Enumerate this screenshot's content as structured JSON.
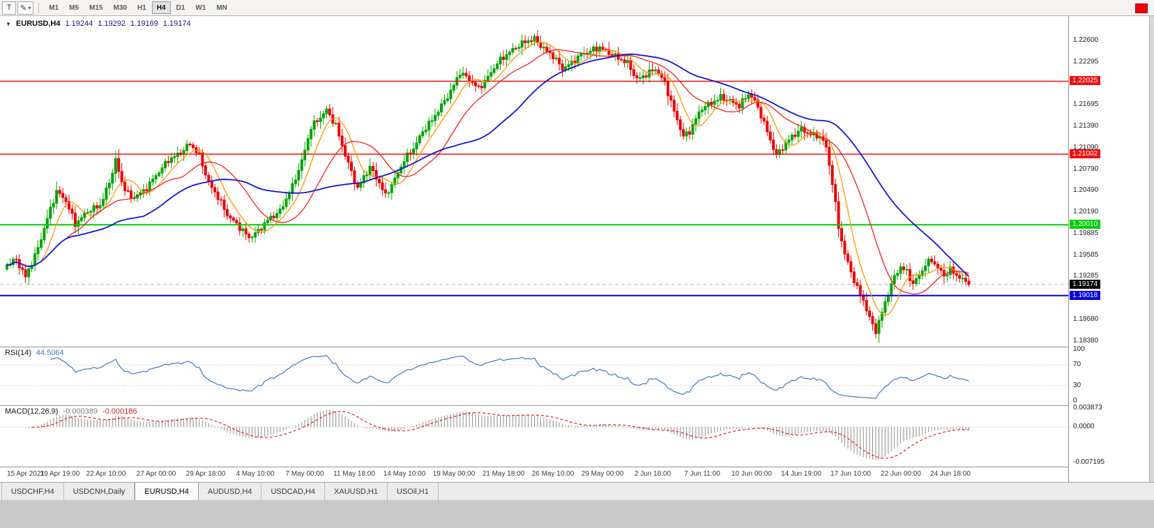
{
  "toolbar": {
    "tools": [
      {
        "name": "text-tool",
        "glyph": "T"
      },
      {
        "name": "draw-tool",
        "glyph": "✎",
        "caret": "▾"
      }
    ],
    "timeframes": [
      "M1",
      "M5",
      "M15",
      "M30",
      "H1",
      "H4",
      "D1",
      "W1",
      "MN"
    ],
    "active_timeframe": "H4"
  },
  "header": {
    "collapse_icon": "▼",
    "symbol": "EURUSD,H4",
    "open": "1.19244",
    "high": "1.19292",
    "low": "1.19169",
    "close": "1.19174"
  },
  "price_axis": {
    "p_top": 1.2294,
    "p_bottom": 1.183,
    "ticks": [
      "1.22600",
      "1.22295",
      "1.21990",
      "1.21695",
      "1.21390",
      "1.21090",
      "1.20790",
      "1.20490",
      "1.20190",
      "1.19885",
      "1.19585",
      "1.19285",
      "1.18980",
      "1.18680",
      "1.18380"
    ]
  },
  "levels": [
    {
      "value": 1.22025,
      "label": "1.22025",
      "color": "#ee1010",
      "line_width": 1.4,
      "type": "resistance"
    },
    {
      "value": 1.21002,
      "label": "1.21002",
      "color": "#ee1010",
      "line_width": 1.4,
      "type": "resistance"
    },
    {
      "value": 1.2001,
      "label": "1.20010",
      "color": "#00ce00",
      "line_width": 2,
      "type": "support"
    },
    {
      "value": 1.19018,
      "label": "1.19018",
      "color": "#0000d8",
      "line_width": 2,
      "type": "support"
    }
  ],
  "last_price": {
    "value": 1.19174,
    "label": "1.19174",
    "tag_color": "#000000"
  },
  "chart_data": {
    "type": "candlestick",
    "symbol": "EURUSD",
    "timeframe": "H4",
    "bars": 311,
    "colors": {
      "bull": "#00a400",
      "bear": "#ee0000"
    },
    "wiggle": 0.00045,
    "price_anchors": [
      [
        0,
        1.1945
      ],
      [
        3,
        1.1952
      ],
      [
        6,
        1.1928
      ],
      [
        10,
        1.1968
      ],
      [
        13,
        1.201
      ],
      [
        16,
        1.2048
      ],
      [
        19,
        1.2035
      ],
      [
        22,
        1.2002
      ],
      [
        26,
        1.202
      ],
      [
        30,
        1.2028
      ],
      [
        33,
        1.206
      ],
      [
        35,
        1.2092
      ],
      [
        37,
        1.206
      ],
      [
        40,
        1.2038
      ],
      [
        44,
        1.2048
      ],
      [
        48,
        1.207
      ],
      [
        52,
        1.2092
      ],
      [
        56,
        1.2102
      ],
      [
        59,
        1.2115
      ],
      [
        62,
        1.2098
      ],
      [
        65,
        1.206
      ],
      [
        68,
        1.204
      ],
      [
        71,
        1.2015
      ],
      [
        74,
        1.2002
      ],
      [
        78,
        1.1983
      ],
      [
        81,
        1.1992
      ],
      [
        84,
        1.2008
      ],
      [
        88,
        1.202
      ],
      [
        92,
        1.2055
      ],
      [
        95,
        1.209
      ],
      [
        98,
        1.2138
      ],
      [
        101,
        1.2152
      ],
      [
        103,
        1.2162
      ],
      [
        106,
        1.214
      ],
      [
        108,
        1.2112
      ],
      [
        111,
        1.2075
      ],
      [
        113,
        1.2052
      ],
      [
        115,
        1.2068
      ],
      [
        117,
        1.2082
      ],
      [
        120,
        1.206
      ],
      [
        122,
        1.2042
      ],
      [
        125,
        1.2065
      ],
      [
        128,
        1.2092
      ],
      [
        131,
        1.2108
      ],
      [
        134,
        1.2132
      ],
      [
        137,
        1.2148
      ],
      [
        140,
        1.2168
      ],
      [
        143,
        1.2188
      ],
      [
        146,
        1.2215
      ],
      [
        149,
        1.2205
      ],
      [
        152,
        1.2192
      ],
      [
        155,
        1.2208
      ],
      [
        158,
        1.2228
      ],
      [
        161,
        1.224
      ],
      [
        164,
        1.225
      ],
      [
        167,
        1.2258
      ],
      [
        170,
        1.2262
      ],
      [
        173,
        1.2248
      ],
      [
        176,
        1.2238
      ],
      [
        179,
        1.222
      ],
      [
        182,
        1.2228
      ],
      [
        185,
        1.224
      ],
      [
        188,
        1.2245
      ],
      [
        191,
        1.225
      ],
      [
        194,
        1.2242
      ],
      [
        197,
        1.2235
      ],
      [
        200,
        1.2228
      ],
      [
        203,
        1.2205
      ],
      [
        206,
        1.2212
      ],
      [
        209,
        1.222
      ],
      [
        212,
        1.22
      ],
      [
        215,
        1.216
      ],
      [
        218,
        1.2125
      ],
      [
        220,
        1.2132
      ],
      [
        222,
        1.215
      ],
      [
        224,
        1.2165
      ],
      [
        227,
        1.2172
      ],
      [
        230,
        1.218
      ],
      [
        233,
        1.2175
      ],
      [
        236,
        1.2168
      ],
      [
        239,
        1.2185
      ],
      [
        241,
        1.2175
      ],
      [
        243,
        1.2155
      ],
      [
        246,
        1.212
      ],
      [
        248,
        1.2098
      ],
      [
        250,
        1.211
      ],
      [
        253,
        1.2125
      ],
      [
        256,
        1.2135
      ],
      [
        259,
        1.2128
      ],
      [
        262,
        1.2125
      ],
      [
        264,
        1.211
      ],
      [
        266,
        1.206
      ],
      [
        268,
        1.1998
      ],
      [
        270,
        1.196
      ],
      [
        272,
        1.1935
      ],
      [
        274,
        1.1912
      ],
      [
        276,
        1.1895
      ],
      [
        278,
        1.187
      ],
      [
        280,
        1.1852
      ],
      [
        282,
        1.1878
      ],
      [
        284,
        1.1905
      ],
      [
        286,
        1.1928
      ],
      [
        288,
        1.1942
      ],
      [
        290,
        1.1935
      ],
      [
        292,
        1.1918
      ],
      [
        294,
        1.193
      ],
      [
        296,
        1.1945
      ],
      [
        298,
        1.1952
      ],
      [
        300,
        1.194
      ],
      [
        302,
        1.193
      ],
      [
        304,
        1.1938
      ],
      [
        306,
        1.193
      ],
      [
        308,
        1.1926
      ],
      [
        310,
        1.19174
      ]
    ],
    "moving_averages": [
      {
        "period": 8,
        "color": "#ff9800",
        "width": 1.3
      },
      {
        "period": 20,
        "color": "#ee2020",
        "width": 1.3
      },
      {
        "period": 45,
        "color": "#1515cc",
        "width": 1.8
      }
    ],
    "indicators": {
      "rsi": {
        "label": "RSI(14)",
        "value": "44.5064",
        "period": 14,
        "color": "#3e78c0",
        "levels": [
          70,
          30
        ],
        "scale": [
          "100",
          "70",
          "30",
          "0"
        ]
      },
      "macd": {
        "label": "MACD(12,26,9)",
        "values": [
          "-0.000389",
          "-0.000186"
        ],
        "fast": 12,
        "slow": 26,
        "signal": 9,
        "hist_color": "#8c8c8c",
        "signal_color": "#e02020",
        "scale": {
          "max": 0.003873,
          "min": -0.007195,
          "labels": [
            "0.003873",
            "0.0000",
            "-0.007195"
          ]
        }
      }
    },
    "time_labels": [
      {
        "label": "15 Apr 2021",
        "bar": 6
      },
      {
        "label": "19 Apr 19:00",
        "bar": 17
      },
      {
        "label": "22 Apr 10:00",
        "bar": 32
      },
      {
        "label": "27 Apr 00:00",
        "bar": 48
      },
      {
        "label": "29 Apr 18:00",
        "bar": 64
      },
      {
        "label": "4 May 10:00",
        "bar": 80
      },
      {
        "label": "7 May 00:00",
        "bar": 96
      },
      {
        "label": "11 May 18:00",
        "bar": 112
      },
      {
        "label": "14 May 10:00",
        "bar": 128
      },
      {
        "label": "19 May 00:00",
        "bar": 144
      },
      {
        "label": "21 May 18:00",
        "bar": 160
      },
      {
        "label": "26 May 10:00",
        "bar": 176
      },
      {
        "label": "29 May 00:00",
        "bar": 192
      },
      {
        "label": "2 Jun 18:00",
        "bar": 208
      },
      {
        "label": "7 Jun 11:00",
        "bar": 224
      },
      {
        "label": "10 Jun 00:00",
        "bar": 240
      },
      {
        "label": "14 Jun 19:00",
        "bar": 256
      },
      {
        "label": "17 Jun 10:00",
        "bar": 272
      },
      {
        "label": "22 Jun 00:00",
        "bar": 288
      },
      {
        "label": "24 Jun 18:00",
        "bar": 304
      }
    ]
  },
  "tabs": {
    "items": [
      "USDCHF,H4",
      "USDCNH,Daily",
      "EURUSD,H4",
      "AUDUSD,H4",
      "USDCAD,H4",
      "XAUUSD,H1",
      "USOil,H1"
    ],
    "active": "EURUSD,H4"
  }
}
